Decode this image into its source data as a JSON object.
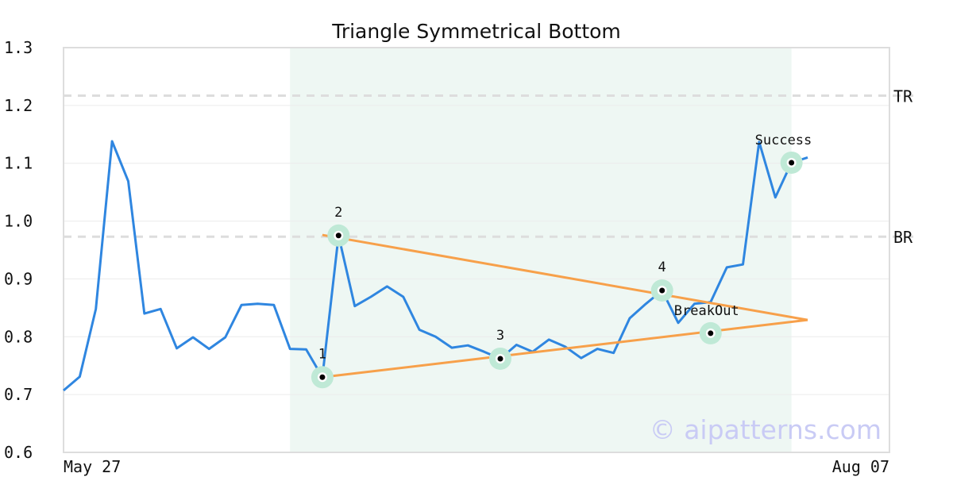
{
  "chart_data": {
    "type": "line",
    "title": "Triangle Symmetrical Bottom",
    "ylim": [
      0.6,
      1.3
    ],
    "yticks": [
      "0.6",
      "0.7",
      "0.8",
      "0.9",
      "1.0",
      "1.1",
      "1.2",
      "1.3"
    ],
    "x_tick_labels": [
      "May 27",
      "Aug 07"
    ],
    "grid": "horizontal",
    "colors": {
      "series": "#2f86e0",
      "trendline": "#f7a04a",
      "marker_halo": "#bfe9d6",
      "shade": "#eef7f3",
      "ref_line": "#dddddd",
      "frame": "#dddddd",
      "grid": "#ececec",
      "watermark": "#c9cbf5"
    },
    "series": [
      {
        "values": [
          0.707,
          0.731,
          0.848,
          1.138,
          1.069,
          0.84,
          0.848,
          0.78,
          0.799,
          0.779,
          0.799,
          0.855,
          0.857,
          0.855,
          0.779,
          0.778,
          0.73,
          0.975,
          0.853,
          0.869,
          0.887,
          0.869,
          0.812,
          0.8,
          0.781,
          0.785,
          0.774,
          0.762,
          0.786,
          0.774,
          0.795,
          0.783,
          0.763,
          0.779,
          0.772,
          0.832,
          0.857,
          0.88,
          0.824,
          0.857,
          0.86,
          0.92,
          0.925,
          1.137,
          1.041,
          1.101,
          1.11
        ]
      }
    ],
    "shaded_range": {
      "from_index": 14,
      "to_index": 45
    },
    "reference_lines": [
      {
        "label": "TR",
        "y": 1.217
      },
      {
        "label": "BR",
        "y": 0.973
      }
    ],
    "trendlines": [
      {
        "from": {
          "index": 16,
          "y": 0.73
        },
        "to": {
          "index": 46,
          "y": 0.829
        }
      },
      {
        "from": {
          "index": 16,
          "y": 0.976
        },
        "to": {
          "index": 46,
          "y": 0.829
        }
      }
    ],
    "points": [
      {
        "label": "1",
        "index": 16,
        "y": 0.73,
        "label_pos": "above"
      },
      {
        "label": "2",
        "index": 17,
        "y": 0.975,
        "label_pos": "above"
      },
      {
        "label": "3",
        "index": 27,
        "y": 0.762,
        "label_pos": "above"
      },
      {
        "label": "4",
        "index": 37,
        "y": 0.88,
        "label_pos": "above"
      },
      {
        "label": "BreakOut",
        "index": 40,
        "y": 0.806,
        "label_pos": "above-left"
      },
      {
        "label": "Success",
        "index": 45,
        "y": 1.101,
        "label_pos": "above-left"
      }
    ],
    "watermark": "© aipatterns.com"
  }
}
